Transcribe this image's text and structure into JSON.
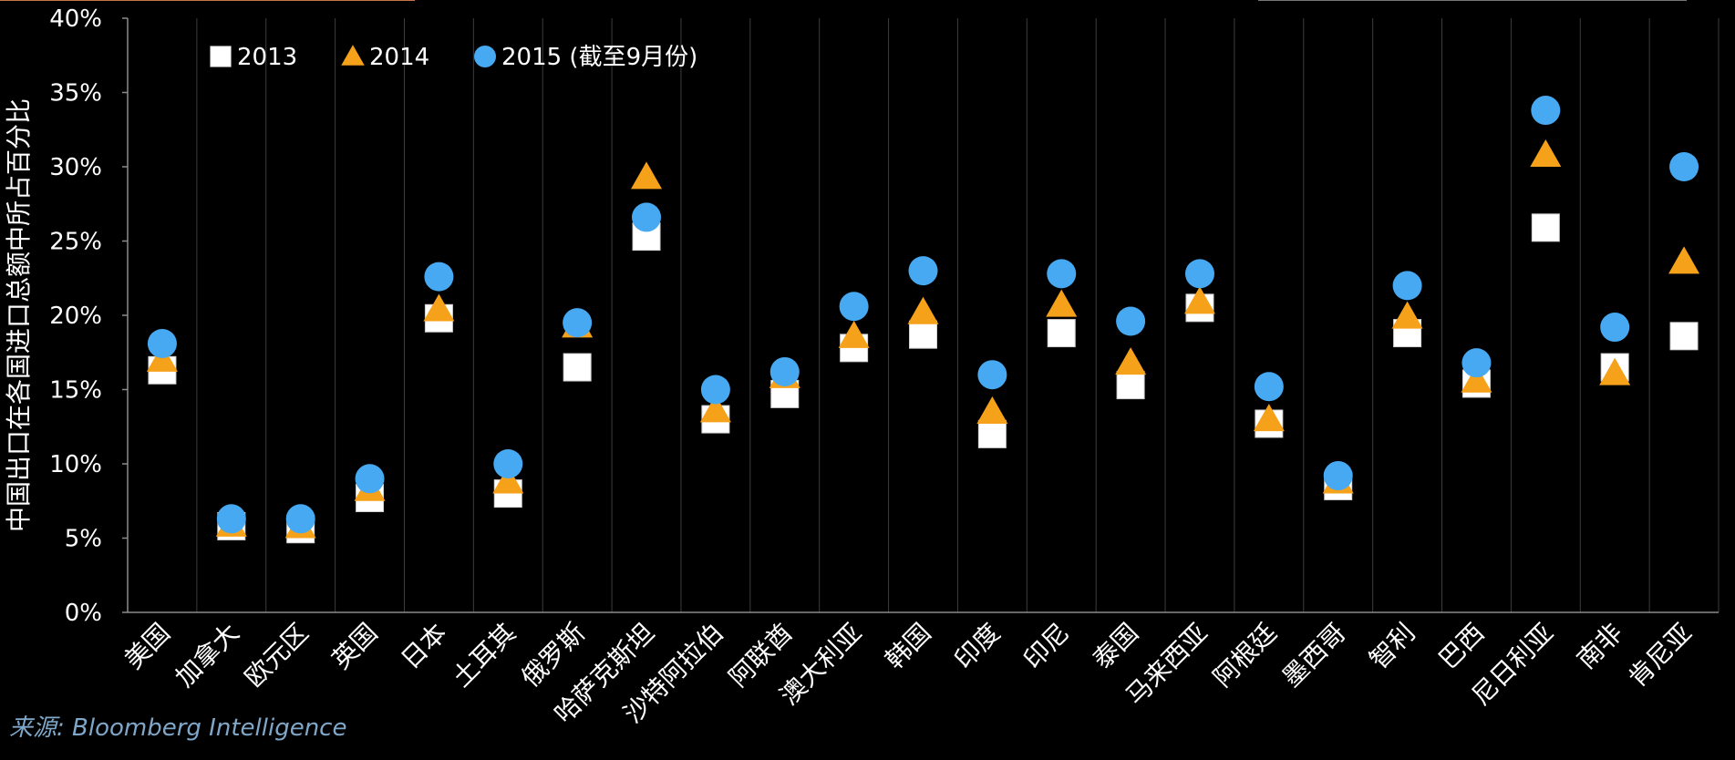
{
  "source": "来源: Bloomberg Intelligence",
  "colors": {
    "s2013": "#ffffff",
    "s2014": "#f6a11a",
    "s2015": "#47a9f1",
    "axis": "#8c8c8c",
    "grid": "#3d3d3d",
    "text": "#ffffff"
  },
  "chart_data": {
    "type": "scatter",
    "ylabel": "中国出口在各国进口总额中所占百分比",
    "xlabel": "",
    "ylim": [
      0,
      40
    ],
    "yticks": [
      "0%",
      "5%",
      "10%",
      "15%",
      "20%",
      "25%",
      "30%",
      "35%",
      "40%"
    ],
    "categories": [
      "美国",
      "加拿大",
      "欧元区",
      "英国",
      "日本",
      "土耳其",
      "俄罗斯",
      "哈萨克斯坦",
      "沙特阿拉伯",
      "阿联酋",
      "澳大利亚",
      "韩国",
      "印度",
      "印尼",
      "泰国",
      "马来西亚",
      "阿根廷",
      "墨西哥",
      "智利",
      "巴西",
      "尼日利亚",
      "南非",
      "肯尼亚"
    ],
    "series": [
      {
        "name": "2013",
        "marker": "square",
        "values": [
          16.3,
          5.8,
          5.6,
          7.7,
          19.8,
          8.0,
          16.5,
          25.3,
          13.0,
          14.7,
          17.8,
          18.7,
          12.0,
          18.8,
          15.3,
          20.5,
          12.7,
          8.5,
          18.8,
          15.4,
          25.9,
          16.5,
          18.6
        ]
      },
      {
        "name": "2014",
        "marker": "triangle",
        "values": [
          17.0,
          5.9,
          5.8,
          8.3,
          20.4,
          8.8,
          19.3,
          29.3,
          13.6,
          15.9,
          18.6,
          20.2,
          13.5,
          20.7,
          16.8,
          20.9,
          13.0,
          8.8,
          19.9,
          15.6,
          30.8,
          16.1,
          23.6
        ]
      },
      {
        "name": "2015 (截至9月份)",
        "marker": "circle",
        "values": [
          18.1,
          6.3,
          6.3,
          9.0,
          22.6,
          10.0,
          19.5,
          26.6,
          15.0,
          16.2,
          20.6,
          23.0,
          16.0,
          22.8,
          19.6,
          22.8,
          15.2,
          9.2,
          22.0,
          16.8,
          33.8,
          19.2,
          30.0
        ]
      }
    ],
    "legend": "top-left",
    "grid": true
  }
}
